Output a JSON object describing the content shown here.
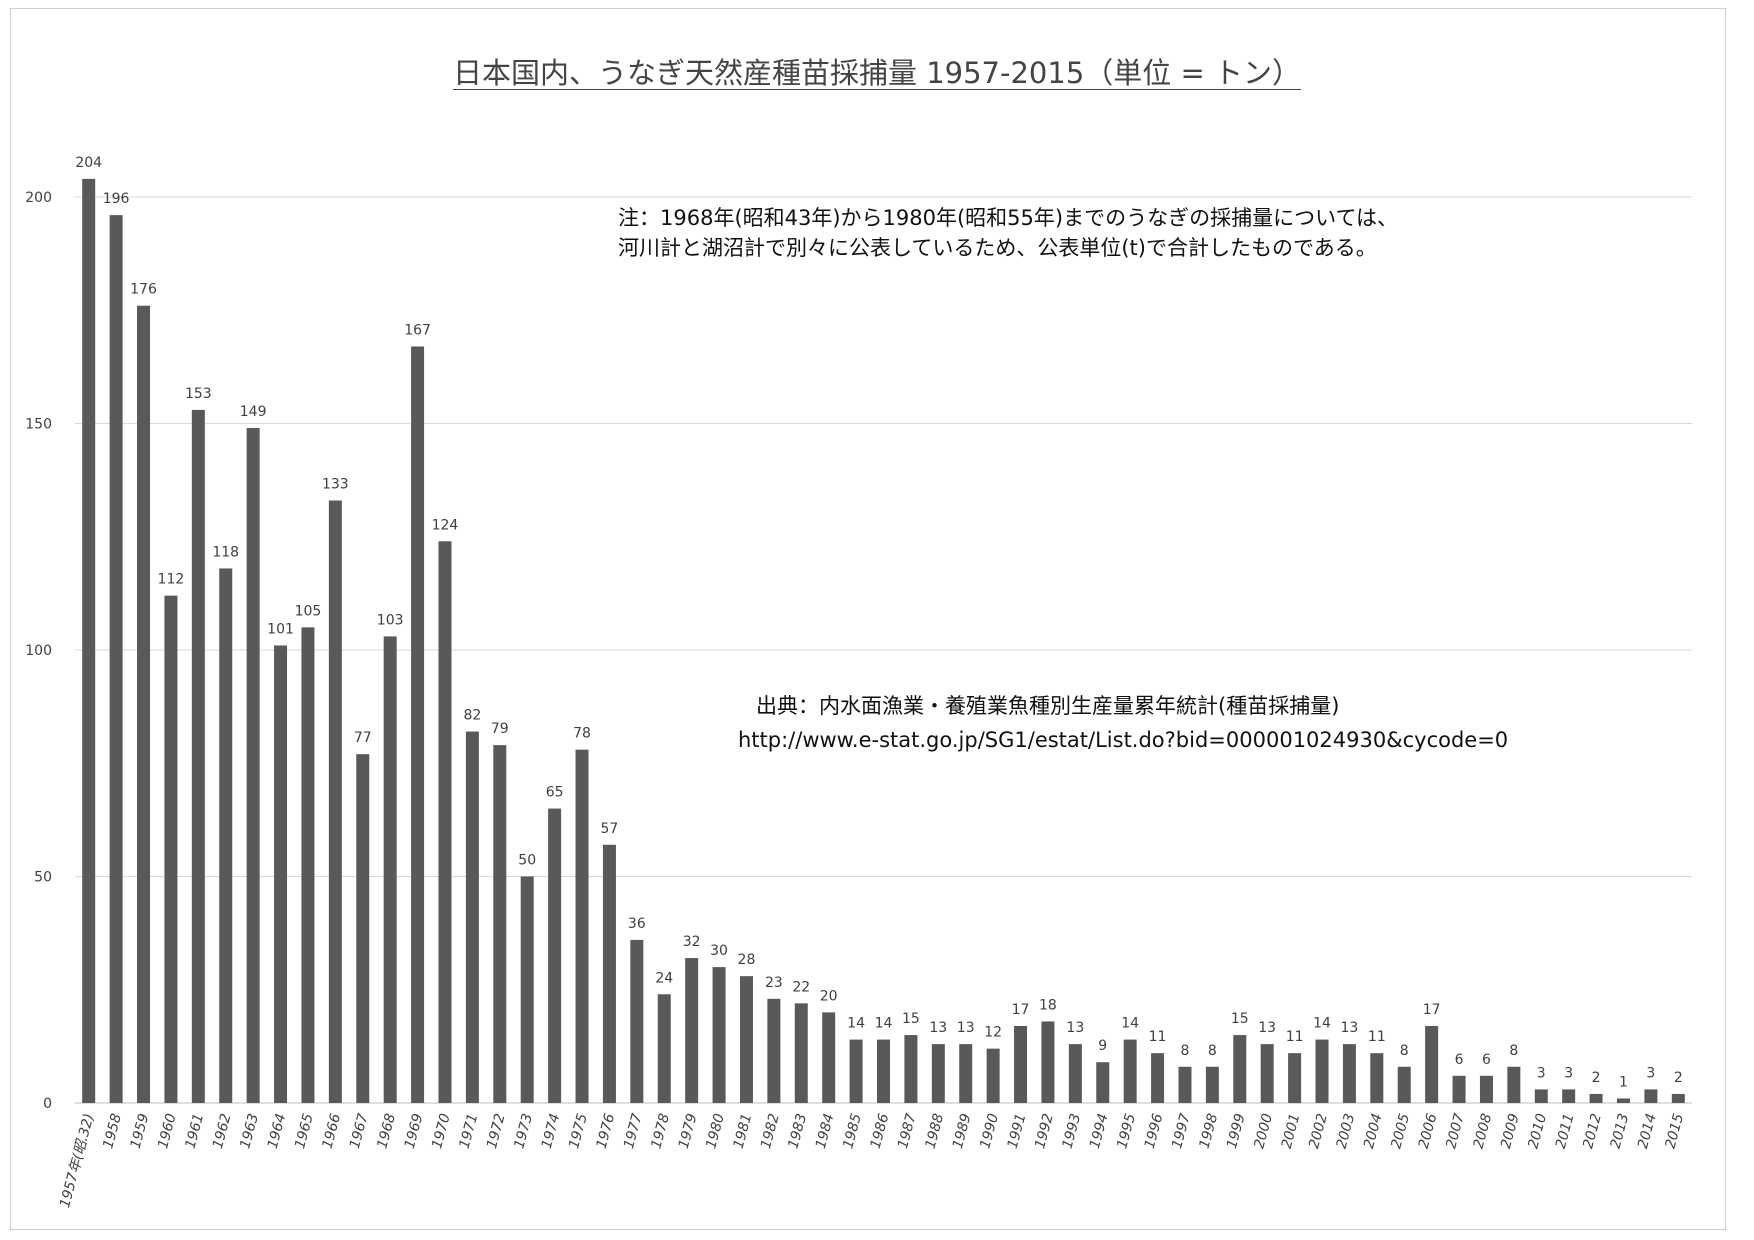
{
  "title": "日本国内、うなぎ天然産種苗採捕量 1957-2015（単位 = トン）",
  "note": {
    "line1": "注：1968年(昭和43年)から1980年(昭和55年)までのうなぎの採捕量については、",
    "line2": "河川計と湖沼計で別々に公表しているため、公表単位(t)で合計したものである。"
  },
  "source": {
    "line1": "出典：内水面漁業・養殖業魚種別生産量累年統計(種苗採捕量)",
    "line2": "http://www.e-stat.go.jp/SG1/estat/List.do?bid=000001024930&cycode=0"
  },
  "colors": {
    "bar": "#595959",
    "grid": "#d9d9d9",
    "axis": "#bfbfbf",
    "text": "#404040"
  },
  "chart_data": {
    "type": "bar",
    "title": "日本国内、うなぎ天然産種苗採捕量 1957-2015（単位 = トン）",
    "xlabel": "",
    "ylabel": "",
    "ylim": [
      0,
      200
    ],
    "yticks": [
      0,
      50,
      100,
      150,
      200
    ],
    "grid": true,
    "legend": "none",
    "categories": [
      "1957年(昭.32)",
      "1958",
      "1959",
      "1960",
      "1961",
      "1962",
      "1963",
      "1964",
      "1965",
      "1966",
      "1967",
      "1968",
      "1969",
      "1970",
      "1971",
      "1972",
      "1973",
      "1974",
      "1975",
      "1976",
      "1977",
      "1978",
      "1979",
      "1980",
      "1981",
      "1982",
      "1983",
      "1984",
      "1985",
      "1986",
      "1987",
      "1988",
      "1989",
      "1990",
      "1991",
      "1992",
      "1993",
      "1994",
      "1995",
      "1996",
      "1997",
      "1998",
      "1999",
      "2000",
      "2001",
      "2002",
      "2003",
      "2004",
      "2005",
      "2006",
      "2007",
      "2008",
      "2009",
      "2010",
      "2011",
      "2012",
      "2013",
      "2014",
      "2015"
    ],
    "values": [
      204,
      196,
      176,
      112,
      153,
      118,
      149,
      101,
      105,
      133,
      77,
      103,
      167,
      124,
      82,
      79,
      50,
      65,
      78,
      57,
      36,
      24,
      32,
      30,
      28,
      23,
      22,
      20,
      14,
      14,
      15,
      13,
      13,
      12,
      17,
      18,
      13,
      9,
      14,
      11,
      8,
      8,
      15,
      13,
      11,
      14,
      13,
      11,
      8,
      17,
      6,
      6,
      8,
      3,
      3,
      2,
      1,
      3,
      2
    ]
  }
}
